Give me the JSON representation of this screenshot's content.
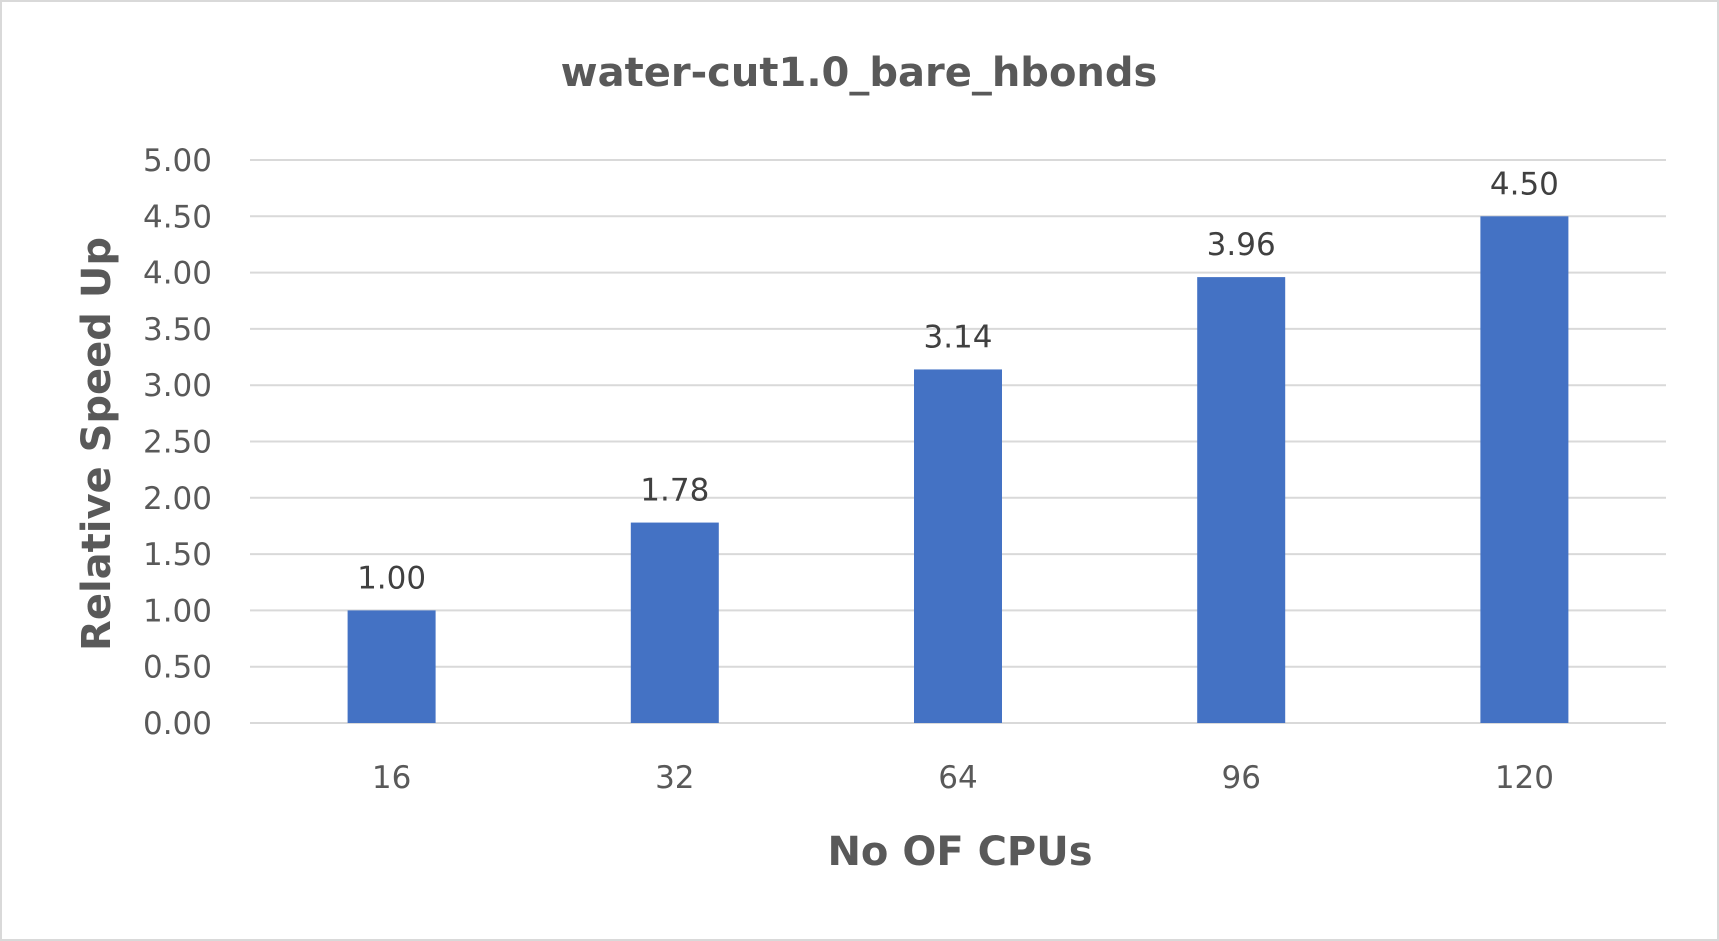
{
  "chart_data": {
    "type": "bar",
    "title": "water-cut1.0_bare_hbonds",
    "xlabel": "No OF CPUs",
    "ylabel": "Relative Speed Up",
    "categories": [
      "16",
      "32",
      "64",
      "96",
      "120"
    ],
    "values": [
      1.0,
      1.78,
      3.14,
      3.96,
      4.5
    ],
    "data_labels": [
      "1.00",
      "1.78",
      "3.14",
      "3.96",
      "4.50"
    ],
    "ylim": [
      0,
      5
    ],
    "yticks": [
      "0.00",
      "0.50",
      "1.00",
      "1.50",
      "2.00",
      "2.50",
      "3.00",
      "3.50",
      "4.00",
      "4.50",
      "5.00"
    ],
    "ytick_values": [
      0,
      0.5,
      1,
      1.5,
      2,
      2.5,
      3,
      3.5,
      4,
      4.5,
      5
    ],
    "grid": true,
    "legend": "none",
    "bar_color": "#4472c4"
  }
}
